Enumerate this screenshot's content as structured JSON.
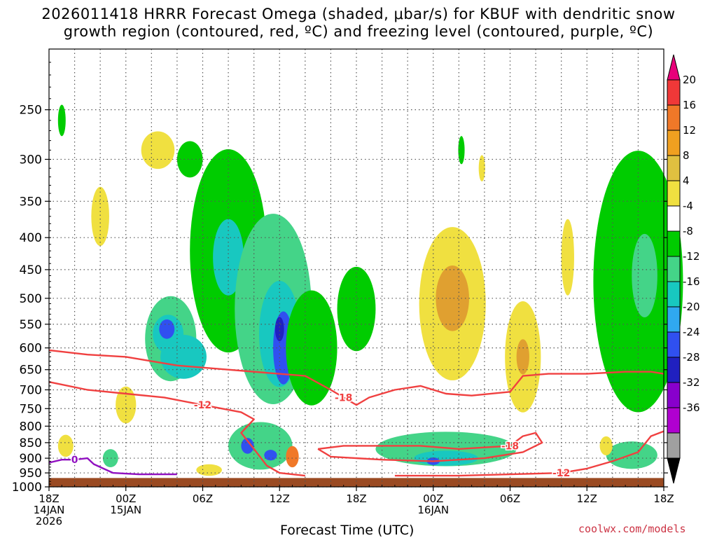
{
  "title_line1": "2026011418 HRRR Forecast Omega (shaded, μbar/s) for KBUF with dendritic snow",
  "title_line2": "growth region (contoured, red, ºC) and freezing level (contoured, purple, ºC)",
  "x_axis_title": "Forecast Time (UTC)",
  "credit": "coolwx.com/models",
  "chart_data": {
    "type": "heatmap",
    "title": "2026011418 HRRR Forecast Omega (shaded, μbar/s) for KBUF with dendritic snow growth region (contoured, red, ºC) and freezing level (contoured, purple, ºC)",
    "xlabel": "Forecast Time (UTC)",
    "ylabel": "",
    "x_range_hours": [
      0,
      48
    ],
    "y_range_hPa": [
      200,
      1000
    ],
    "y_scale": "log",
    "grid": true,
    "y_ticks": [
      250,
      300,
      350,
      400,
      450,
      500,
      550,
      600,
      650,
      700,
      750,
      800,
      850,
      900,
      950,
      1000
    ],
    "x_ticks": [
      {
        "hour": 0,
        "lines": [
          "18Z",
          "14JAN",
          "2026"
        ]
      },
      {
        "hour": 6,
        "lines": [
          "00Z",
          "15JAN"
        ]
      },
      {
        "hour": 12,
        "lines": [
          "06Z"
        ]
      },
      {
        "hour": 18,
        "lines": [
          "12Z"
        ]
      },
      {
        "hour": 24,
        "lines": [
          "18Z"
        ]
      },
      {
        "hour": 30,
        "lines": [
          "00Z",
          "16JAN"
        ]
      },
      {
        "hour": 36,
        "lines": [
          "06Z"
        ]
      },
      {
        "hour": 42,
        "lines": [
          "12Z"
        ]
      },
      {
        "hour": 48,
        "lines": [
          "18Z"
        ]
      }
    ],
    "colorbar": {
      "labels": [
        "20",
        "16",
        "12",
        "8",
        "4",
        "-4",
        "-8",
        "-12",
        "-16",
        "-20",
        "-24",
        "-28",
        "-32",
        "-36"
      ],
      "colors": [
        "#e8007a",
        "#f03838",
        "#f07828",
        "#f0a020",
        "#e0c040",
        "#f0e040",
        "#ffffff",
        "#00cc00",
        "#44d488",
        "#18c8c0",
        "#30a8f0",
        "#3050f0",
        "#2020c0",
        "#8800cc",
        "#b000d0",
        "#a0a0a0",
        "#000000"
      ]
    },
    "omega_regions": [
      {
        "t": 1.0,
        "p": 260,
        "w": 0.3,
        "h": 30,
        "value": -6
      },
      {
        "t": 4.0,
        "p": 370,
        "w": 0.7,
        "h": 80,
        "value": 5
      },
      {
        "t": 8.5,
        "p": 290,
        "w": 1.3,
        "h": 40,
        "value": 5
      },
      {
        "t": 11.0,
        "p": 300,
        "w": 1.0,
        "h": 40,
        "value": -6
      },
      {
        "t": 9.5,
        "p": 580,
        "w": 2.0,
        "h": 180,
        "value": -8
      },
      {
        "t": 9.3,
        "p": 570,
        "w": 1.2,
        "h": 80,
        "value": -14
      },
      {
        "t": 9.2,
        "p": 560,
        "w": 0.6,
        "h": 40,
        "value": -22
      },
      {
        "t": 10.5,
        "p": 620,
        "w": 1.8,
        "h": 100,
        "value": -12
      },
      {
        "t": 14.0,
        "p": 420,
        "w": 3.0,
        "h": 300,
        "value": -7
      },
      {
        "t": 14.0,
        "p": 430,
        "w": 1.2,
        "h": 120,
        "value": -13
      },
      {
        "t": 17.5,
        "p": 520,
        "w": 3.0,
        "h": 350,
        "value": -8
      },
      {
        "t": 18.0,
        "p": 570,
        "w": 1.6,
        "h": 220,
        "value": -13
      },
      {
        "t": 18.3,
        "p": 600,
        "w": 0.8,
        "h": 160,
        "value": -22
      },
      {
        "t": 18.0,
        "p": 560,
        "w": 0.35,
        "h": 50,
        "value": -26
      },
      {
        "t": 20.5,
        "p": 600,
        "w": 2.0,
        "h": 250,
        "value": -7
      },
      {
        "t": 24.0,
        "p": 520,
        "w": 1.5,
        "h": 160,
        "value": -7
      },
      {
        "t": 16.5,
        "p": 860,
        "w": 2.5,
        "h": 150,
        "value": -9
      },
      {
        "t": 15.5,
        "p": 860,
        "w": 0.5,
        "h": 50,
        "value": -22
      },
      {
        "t": 17.3,
        "p": 890,
        "w": 0.5,
        "h": 35,
        "value": -20
      },
      {
        "t": 19.0,
        "p": 895,
        "w": 0.5,
        "h": 70,
        "value": 12
      },
      {
        "t": 6.0,
        "p": 740,
        "w": 0.8,
        "h": 100,
        "value": 5
      },
      {
        "t": 1.3,
        "p": 860,
        "w": 0.6,
        "h": 70,
        "value": 5
      },
      {
        "t": 4.8,
        "p": 900,
        "w": 0.6,
        "h": 60,
        "value": -8
      },
      {
        "t": 12.5,
        "p": 940,
        "w": 1.0,
        "h": 40,
        "value": 5
      },
      {
        "t": 31.5,
        "p": 510,
        "w": 2.6,
        "h": 280,
        "value": 5
      },
      {
        "t": 31.5,
        "p": 500,
        "w": 1.3,
        "h": 120,
        "value": 10
      },
      {
        "t": 37.0,
        "p": 620,
        "w": 1.4,
        "h": 250,
        "value": 5
      },
      {
        "t": 37.0,
        "p": 620,
        "w": 0.5,
        "h": 80,
        "value": 9
      },
      {
        "t": 40.5,
        "p": 430,
        "w": 0.5,
        "h": 120,
        "value": 5
      },
      {
        "t": 31.0,
        "p": 870,
        "w": 5.5,
        "h": 110,
        "value": -8
      },
      {
        "t": 31.0,
        "p": 900,
        "w": 2.5,
        "h": 50,
        "value": -13
      },
      {
        "t": 30.0,
        "p": 910,
        "w": 0.5,
        "h": 25,
        "value": -22
      },
      {
        "t": 46.0,
        "p": 470,
        "w": 3.5,
        "h": 420,
        "value": -7
      },
      {
        "t": 46.5,
        "p": 460,
        "w": 1.0,
        "h": 140,
        "value": -10
      },
      {
        "t": 45.5,
        "p": 890,
        "w": 2.0,
        "h": 90,
        "value": -8
      },
      {
        "t": 43.5,
        "p": 860,
        "w": 0.5,
        "h": 60,
        "value": 5
      },
      {
        "t": 33.8,
        "p": 310,
        "w": 0.25,
        "h": 30,
        "value": 5
      },
      {
        "t": 32.2,
        "p": 290,
        "w": 0.25,
        "h": 30,
        "value": -6
      }
    ],
    "contours": [
      {
        "label": "-18",
        "color": "#f04040",
        "points": [
          [
            0,
            605
          ],
          [
            3,
            615
          ],
          [
            6,
            620
          ],
          [
            10,
            640
          ],
          [
            14,
            650
          ],
          [
            20,
            665
          ],
          [
            22,
            700
          ],
          [
            23,
            720
          ],
          [
            24,
            740
          ],
          [
            25,
            720
          ],
          [
            27,
            700
          ],
          [
            29,
            690
          ],
          [
            31,
            710
          ],
          [
            33,
            715
          ],
          [
            36,
            705
          ],
          [
            37,
            665
          ],
          [
            39,
            660
          ],
          [
            42,
            660
          ],
          [
            45,
            655
          ],
          [
            47,
            655
          ],
          [
            48,
            660
          ]
        ]
      },
      {
        "label": "-12",
        "color": "#f04040",
        "points": [
          [
            0,
            680
          ],
          [
            3,
            700
          ],
          [
            6,
            710
          ],
          [
            9,
            720
          ],
          [
            12,
            740
          ],
          [
            15,
            760
          ],
          [
            16,
            780
          ],
          [
            15,
            820
          ],
          [
            16,
            870
          ],
          [
            17,
            925
          ],
          [
            18,
            950
          ],
          [
            20,
            960
          ]
        ]
      },
      {
        "label": "-18",
        "color": "#f04040",
        "points": [
          [
            21,
            870
          ],
          [
            23,
            860
          ],
          [
            26,
            860
          ],
          [
            29,
            860
          ],
          [
            32,
            870
          ],
          [
            36,
            860
          ],
          [
            37,
            830
          ],
          [
            38,
            820
          ],
          [
            38.5,
            850
          ],
          [
            37,
            880
          ],
          [
            34,
            900
          ],
          [
            30,
            910
          ],
          [
            26,
            905
          ],
          [
            22,
            895
          ],
          [
            21,
            870
          ]
        ]
      },
      {
        "label": "-12",
        "color": "#f04040",
        "points": [
          [
            27,
            960
          ],
          [
            32,
            960
          ],
          [
            36,
            955
          ],
          [
            40,
            950
          ],
          [
            42,
            935
          ],
          [
            44,
            910
          ],
          [
            46,
            880
          ],
          [
            47,
            830
          ],
          [
            48,
            815
          ]
        ]
      },
      {
        "label": "0",
        "color": "#9010c0",
        "points": [
          [
            0,
            915
          ],
          [
            1,
            905
          ],
          [
            2,
            905
          ],
          [
            3,
            900
          ],
          [
            3.5,
            920
          ],
          [
            5,
            950
          ],
          [
            7,
            955
          ],
          [
            10,
            955
          ]
        ]
      }
    ]
  }
}
